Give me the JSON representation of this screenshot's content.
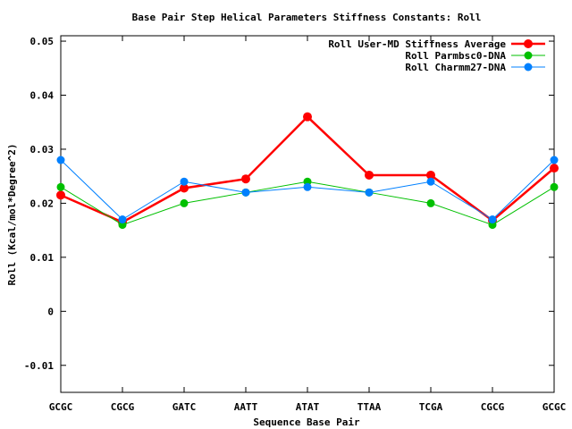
{
  "chart_data": {
    "type": "line",
    "title": "Base Pair Step Helical Parameters Stiffness Constants: Roll",
    "xlabel": "Sequence Base Pair",
    "ylabel": "Roll (Kcal/mol*Degree^2)",
    "categories": [
      "GCGC",
      "CGCG",
      "GATC",
      "AATT",
      "ATAT",
      "TTAA",
      "TCGA",
      "CGCG",
      "GCGC"
    ],
    "ylim": [
      -0.015,
      0.051
    ],
    "yticks": [
      -0.01,
      0,
      0.01,
      0.02,
      0.03,
      0.04,
      0.05
    ],
    "ytick_labels": [
      "-0.01",
      "0",
      "0.01",
      "0.02",
      "0.03",
      "0.04",
      "0.05"
    ],
    "grid": false,
    "legend_position": "top-right",
    "series": [
      {
        "name": "Roll User-MD Stiffness Average",
        "color": "#ff0000",
        "values": [
          0.0215,
          0.0165,
          0.0228,
          0.0245,
          0.036,
          0.0252,
          0.0252,
          0.0168,
          0.0265
        ]
      },
      {
        "name": "Roll Parmbsc0-DNA",
        "color": "#00c000",
        "values": [
          0.023,
          0.016,
          0.02,
          0.022,
          0.024,
          0.022,
          0.02,
          0.016,
          0.023
        ]
      },
      {
        "name": "Roll Charmm27-DNA",
        "color": "#0080ff",
        "values": [
          0.028,
          0.017,
          0.024,
          0.022,
          0.023,
          0.022,
          0.024,
          0.017,
          0.028
        ]
      }
    ]
  }
}
